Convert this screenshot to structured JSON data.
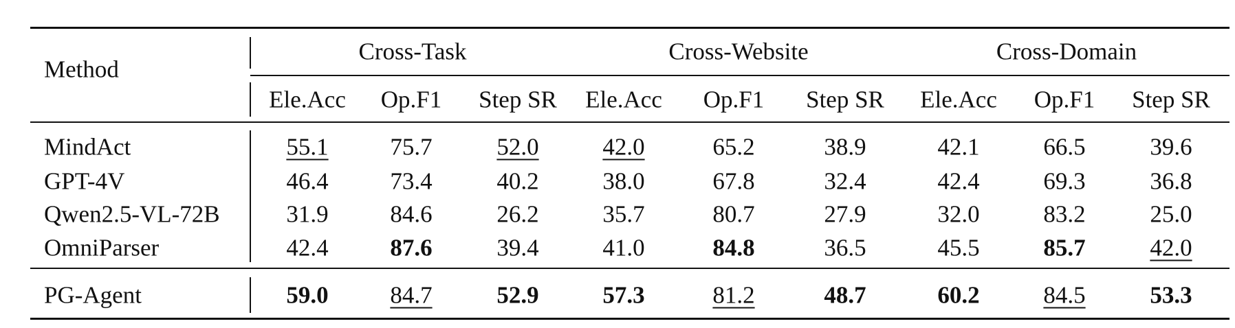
{
  "table": {
    "header": {
      "method": "Method",
      "groups": [
        "Cross-Task",
        "Cross-Website",
        "Cross-Domain"
      ],
      "metrics": [
        "Ele.Acc",
        "Op.F1",
        "Step SR",
        "Ele.Acc",
        "Op.F1",
        "Step SR",
        "Ele.Acc",
        "Op.F1",
        "Step SR"
      ]
    },
    "rows": [
      [
        "MindAct",
        "55.1",
        "75.7",
        "52.0",
        "42.0",
        "65.2",
        "38.9",
        "42.1",
        "66.5",
        "39.6"
      ],
      [
        "GPT-4V",
        "46.4",
        "73.4",
        "40.2",
        "38.0",
        "67.8",
        "32.4",
        "42.4",
        "69.3",
        "36.8"
      ],
      [
        "Qwen2.5-VL-72B",
        "31.9",
        "84.6",
        "26.2",
        "35.7",
        "80.7",
        "27.9",
        "32.0",
        "83.2",
        "25.0"
      ],
      [
        "OmniParser",
        "42.4",
        "87.6",
        "39.4",
        "41.0",
        "84.8",
        "36.5",
        "45.5",
        "85.7",
        "42.0"
      ],
      [
        "PG-Agent",
        "59.0",
        "84.7",
        "52.9",
        "57.3",
        "81.2",
        "48.7",
        "60.2",
        "84.5",
        "53.3"
      ]
    ]
  }
}
